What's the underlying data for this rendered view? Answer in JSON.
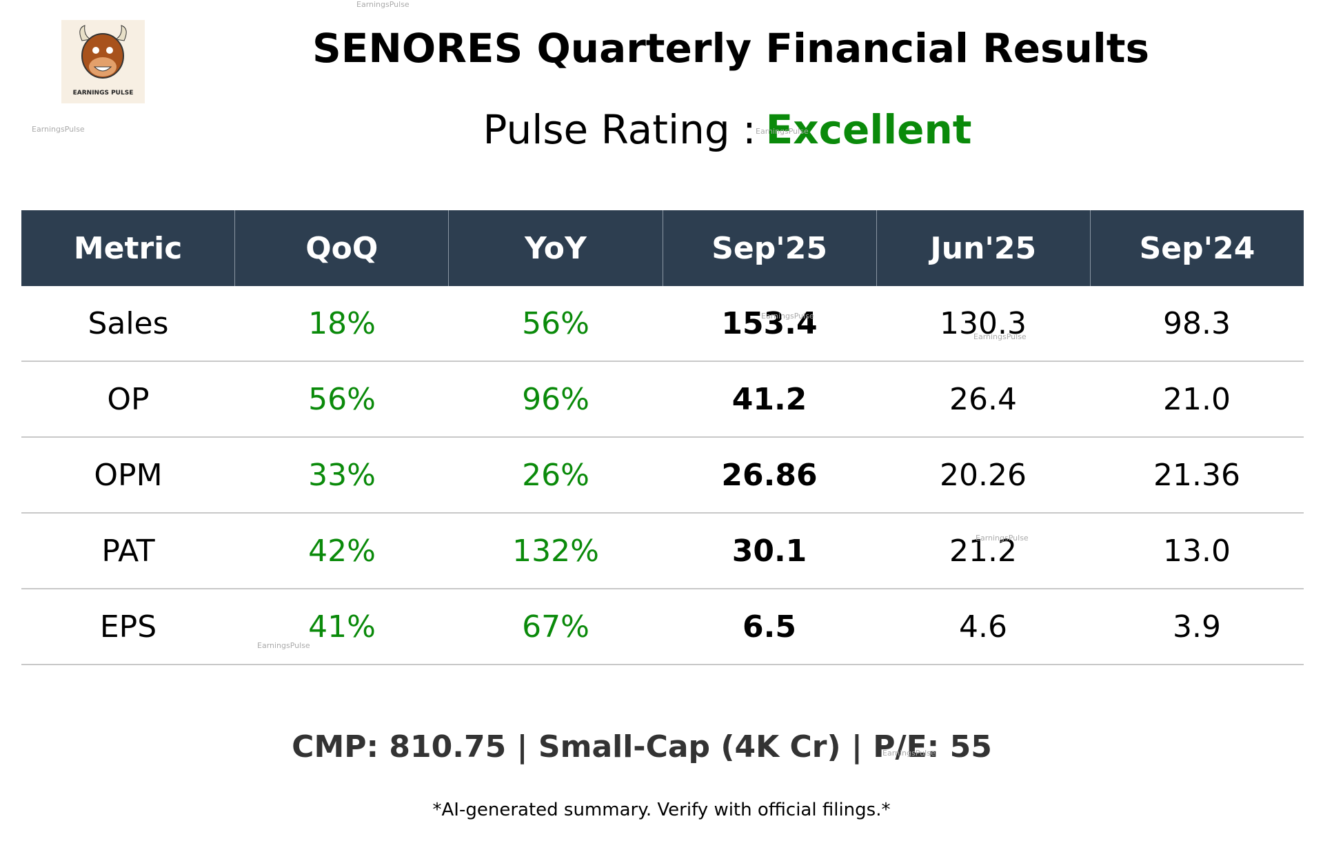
{
  "logo": {
    "text": "EARNINGS PULSE"
  },
  "header": {
    "title": "SENORES Quarterly Financial Results",
    "rating_label": "Pulse Rating :",
    "rating": "Excellent"
  },
  "table": {
    "columns": [
      "Metric",
      "QoQ",
      "YoY",
      "Sep'25",
      "Jun'25",
      "Sep'24"
    ],
    "rows": [
      [
        "Sales",
        "18%",
        "56%",
        "153.4",
        "130.3",
        "98.3"
      ],
      [
        "OP",
        "56%",
        "96%",
        "41.2",
        "26.4",
        "21.0"
      ],
      [
        "OPM",
        "33%",
        "26%",
        "26.86",
        "20.26",
        "21.36"
      ],
      [
        "PAT",
        "42%",
        "132%",
        "30.1",
        "21.2",
        "13.0"
      ],
      [
        "EPS",
        "41%",
        "67%",
        "6.5",
        "4.6",
        "3.9"
      ]
    ]
  },
  "footer": {
    "summary": "CMP: 810.75 | Small-Cap (4K Cr) | P/E: 55",
    "disclaimer": "*AI-generated summary. Verify with official filings.*"
  },
  "watermarks": [
    "EarningsPulse",
    "EarningsPulse",
    "EarningsPulse",
    "EarningsPulse",
    "EarningsPulse",
    "EarningsPulse",
    "EarningsPulse",
    "EarningsPulse"
  ]
}
